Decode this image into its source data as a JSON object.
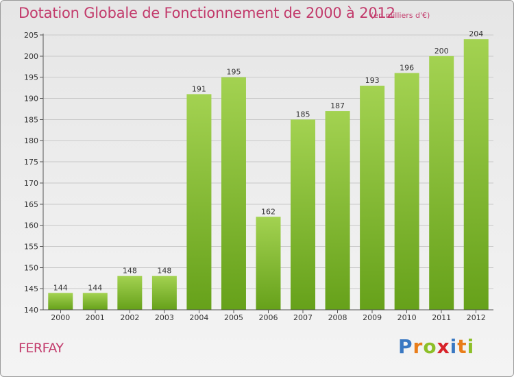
{
  "header": {
    "title": "Dotation Globale de Fonctionnement de 2000 à 2012",
    "subtitle": "(en milliers d'€)"
  },
  "footer": {
    "commune": "FERFAY",
    "logo_text": "Proxiti"
  },
  "colors": {
    "bar_light": "#a3d251",
    "bar_dark": "#66a11a",
    "title": "#c23a6b",
    "grid": "#c8c8c8"
  },
  "chart_data": {
    "type": "bar",
    "title": "Dotation Globale de Fonctionnement de 2000 à 2012",
    "subtitle": "(en milliers d'€)",
    "categories": [
      "2000",
      "2001",
      "2002",
      "2003",
      "2004",
      "2005",
      "2006",
      "2007",
      "2008",
      "2009",
      "2010",
      "2011",
      "2012"
    ],
    "values": [
      144,
      144,
      148,
      148,
      191,
      195,
      162,
      185,
      187,
      193,
      196,
      200,
      204
    ],
    "ylim": [
      140,
      205
    ],
    "yticks": [
      140,
      145,
      150,
      155,
      160,
      165,
      170,
      175,
      180,
      185,
      190,
      195,
      200,
      205
    ],
    "grid": true,
    "legend": "none"
  }
}
